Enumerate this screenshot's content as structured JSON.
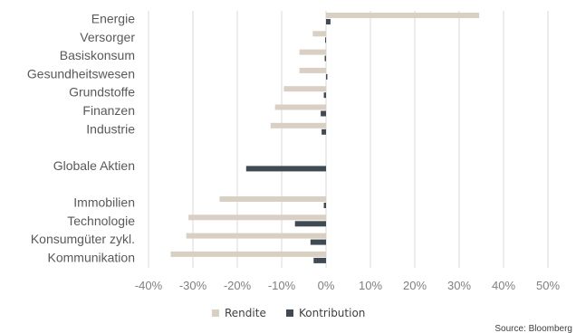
{
  "chart_data": {
    "type": "bar",
    "orientation": "horizontal",
    "categories": [
      "Energie",
      "Versorger",
      "Basiskonsum",
      "Gesundheitswesen",
      "Grundstoffe",
      "Finanzen",
      "Industrie",
      "",
      "Globale Aktien",
      "",
      "Immobilien",
      "Technologie",
      "Konsumgüter zykl.",
      "Kommunikation"
    ],
    "series": [
      {
        "name": "Rendite",
        "color": "#d9cfc3",
        "values": [
          34.5,
          -3.0,
          -6.0,
          -6.0,
          -9.5,
          -11.5,
          -12.5,
          null,
          null,
          null,
          -24.0,
          -31.0,
          -31.5,
          -35.0
        ]
      },
      {
        "name": "Kontribution",
        "color": "#404a52",
        "values": [
          1.0,
          -0.2,
          -0.3,
          0.3,
          -0.5,
          -1.2,
          -1.0,
          null,
          -18.0,
          null,
          -0.5,
          -7.0,
          -3.5,
          -2.8
        ]
      }
    ],
    "xlim": [
      -40,
      50
    ],
    "xticks": [
      -40,
      -30,
      -20,
      -10,
      0,
      10,
      20,
      30,
      40,
      50
    ],
    "tick_suffix": "%",
    "grid": "vertical",
    "legend_position": "bottom"
  },
  "source": "Source: Bloomberg"
}
